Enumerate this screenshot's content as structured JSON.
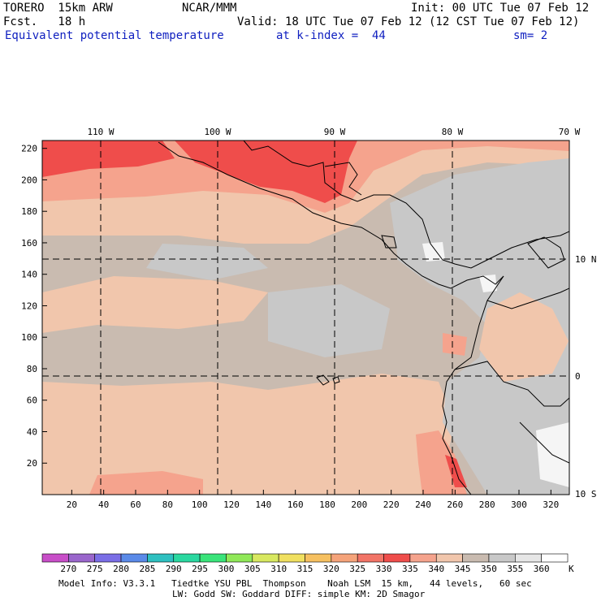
{
  "header": {
    "model": "TORERO  15km ARW",
    "org": "NCAR/MMM",
    "init": "Init: 00 UTC Tue 07 Feb 12",
    "fcst": "Fcst.   18 h",
    "valid": "Valid: 18 UTC Tue 07 Feb 12 (12 CST Tue 07 Feb 12)",
    "field": "Equivalent potential temperature",
    "level": "at k-index =  44",
    "smooth": "sm= 2"
  },
  "map": {
    "lon_labels": [
      "110 W",
      "100 W",
      "90 W",
      "80 W",
      "70 W"
    ],
    "lat_labels": [
      "10 N",
      "0",
      "10 S"
    ],
    "y_ticks": [
      "20",
      "40",
      "60",
      "80",
      "100",
      "120",
      "140",
      "160",
      "180",
      "200",
      "220"
    ],
    "x_ticks": [
      "20",
      "40",
      "60",
      "80",
      "100",
      "120",
      "140",
      "160",
      "180",
      "200",
      "220",
      "240",
      "260",
      "280",
      "300",
      "320"
    ],
    "colors": {
      "cool_grey": "#c8c8c8",
      "warm_grey": "#c9bbb0",
      "peach": "#f1c6ac",
      "salmon": "#f5a38d",
      "coral": "#f27467",
      "red": "#ef4d4b",
      "white": "#f5f5f5"
    }
  },
  "colorbar": {
    "labels": [
      "270",
      "275",
      "280",
      "285",
      "290",
      "295",
      "300",
      "305",
      "310",
      "315",
      "320",
      "325",
      "330",
      "335",
      "340",
      "345",
      "350",
      "355",
      "360"
    ],
    "unit": "K",
    "colors": [
      "#c84ec8",
      "#9a66cc",
      "#7a6ee6",
      "#5a8ae8",
      "#2ec0c0",
      "#2ad8a0",
      "#3ae47a",
      "#90e858",
      "#d8e860",
      "#f0e060",
      "#f6c060",
      "#f5a37a",
      "#f27467",
      "#ef4d4b",
      "#f5a38d",
      "#f1c6ac",
      "#c9bbb0",
      "#c8c8c8",
      "#e6e6e6",
      "#ffffff"
    ]
  },
  "footer": {
    "line1": "Model Info: V3.3.1   Tiedtke YSU PBL  Thompson    Noah LSM  15 km,   44 levels,   60 sec",
    "line2": "LW: Godd SW: Goddard DIFF: simple KM: 2D Smagor"
  }
}
